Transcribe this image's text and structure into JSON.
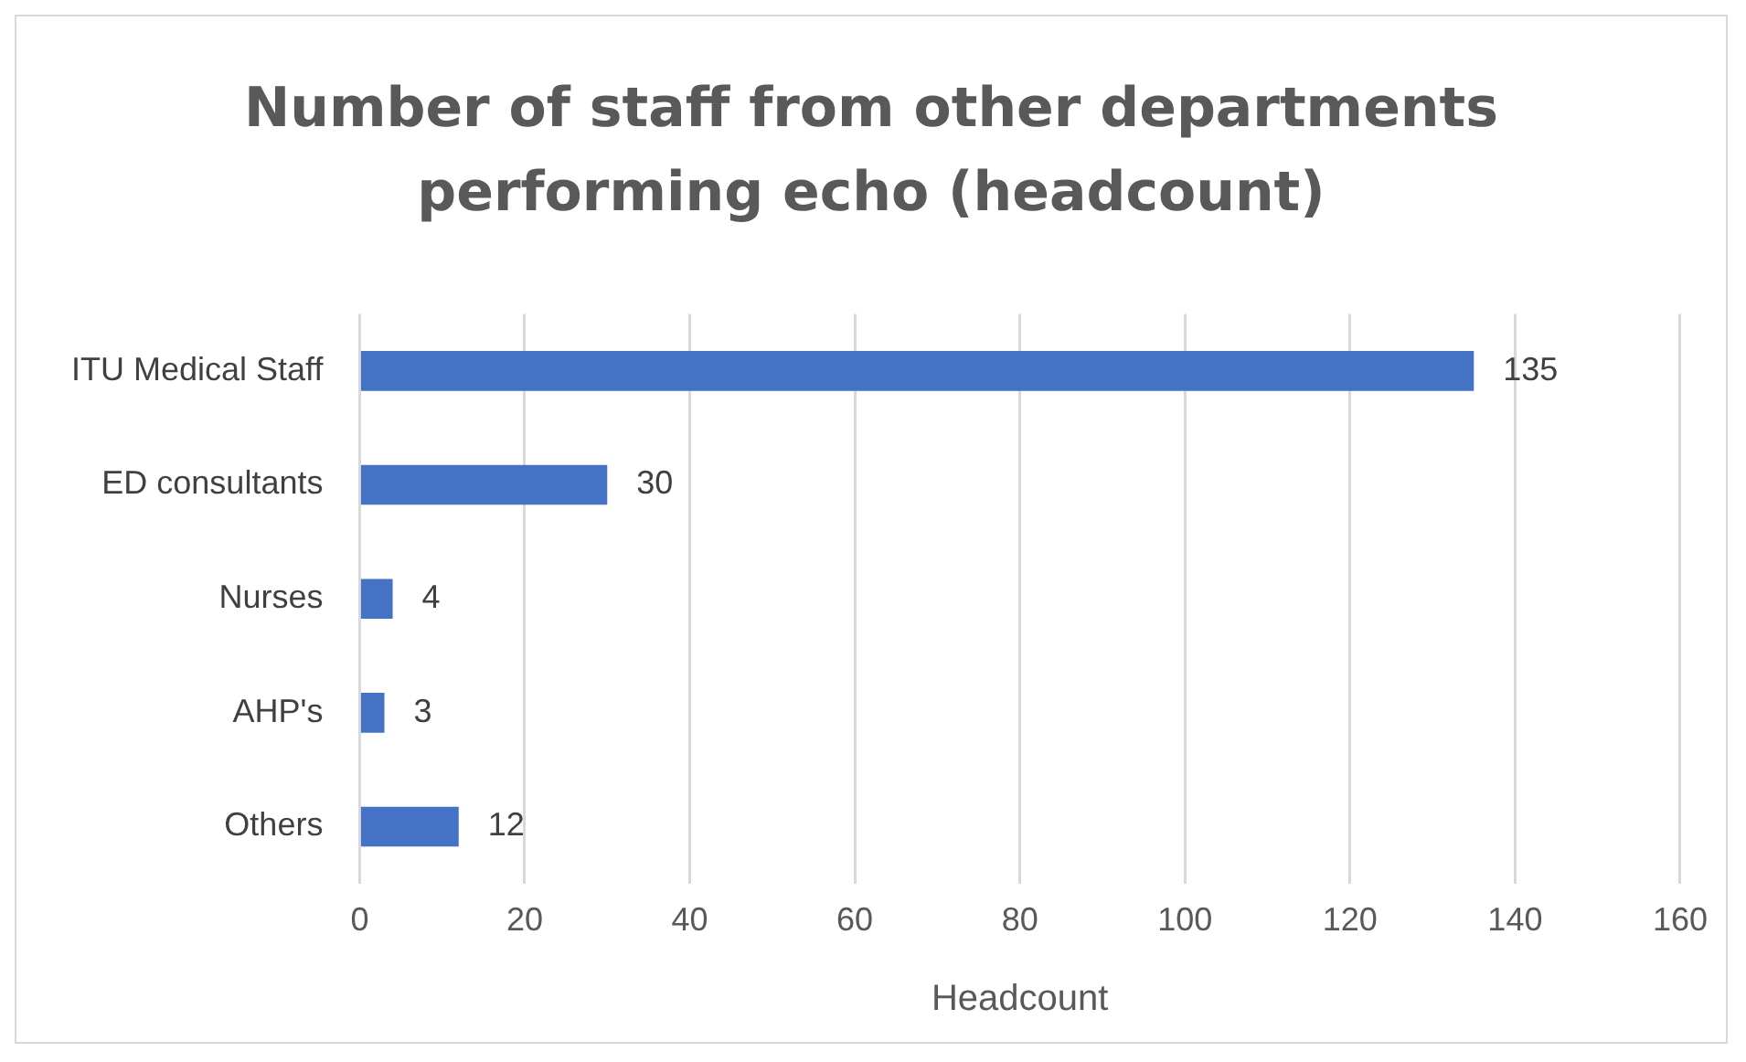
{
  "chart_data": {
    "type": "bar",
    "orientation": "horizontal",
    "title": "Number of staff from other departments performing echo (headcount)",
    "categories": [
      "ITU Medical Staff",
      "ED consultants",
      "Nurses",
      "AHP's",
      "Others"
    ],
    "values": [
      135,
      30,
      4,
      3,
      12
    ],
    "color": "#4472c4",
    "xlabel": "Headcount",
    "xlim": [
      0,
      160
    ],
    "xticks": [
      0,
      20,
      40,
      60,
      80,
      100,
      120,
      140,
      160
    ],
    "grid": "x",
    "data_labels": true,
    "legend": false
  }
}
